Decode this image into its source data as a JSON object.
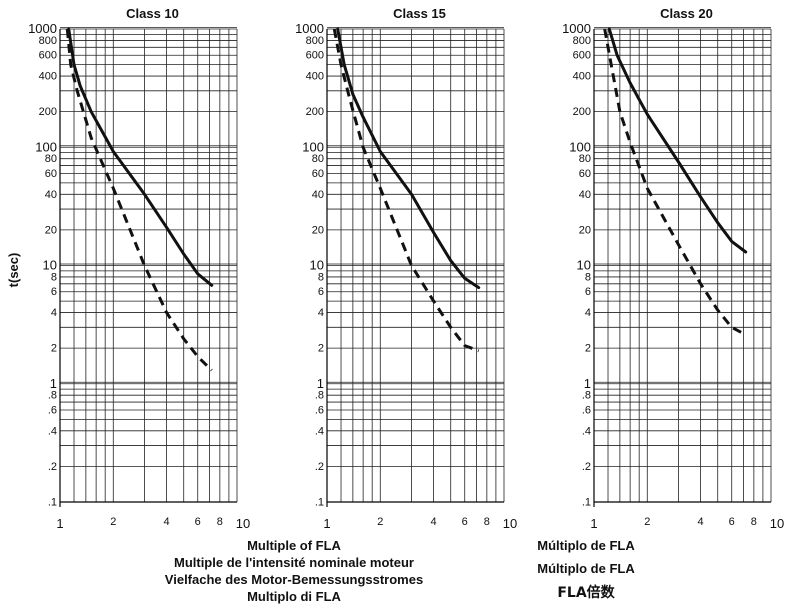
{
  "chart_data": [
    {
      "type": "line",
      "title": "Class 10",
      "x_scale": "log",
      "y_scale": "log",
      "xlim": [
        1,
        10
      ],
      "ylim": [
        0.1,
        1000
      ],
      "grid": true,
      "series": [
        {
          "style": "solid",
          "points": [
            [
              1.12,
              1000
            ],
            [
              1.2,
              500
            ],
            [
              1.3,
              330
            ],
            [
              1.5,
              200
            ],
            [
              2,
              92
            ],
            [
              3,
              40
            ],
            [
              4,
              21
            ],
            [
              5,
              12.5
            ],
            [
              6,
              8.5
            ],
            [
              7.2,
              6.8
            ]
          ]
        },
        {
          "style": "dashed",
          "points": [
            [
              1.1,
              1000
            ],
            [
              1.15,
              500
            ],
            [
              1.25,
              300
            ],
            [
              1.5,
              120
            ],
            [
              2,
              45
            ],
            [
              3,
              10
            ],
            [
              4,
              4
            ],
            [
              5,
              2.4
            ],
            [
              6,
              1.7
            ],
            [
              7.2,
              1.3
            ]
          ]
        }
      ]
    },
    {
      "type": "line",
      "title": "Class 15",
      "x_scale": "log",
      "y_scale": "log",
      "xlim": [
        1,
        10
      ],
      "ylim": [
        0.1,
        1000
      ],
      "grid": true,
      "series": [
        {
          "style": "solid",
          "points": [
            [
              1.15,
              1000
            ],
            [
              1.25,
              500
            ],
            [
              1.4,
              280
            ],
            [
              1.6,
              180
            ],
            [
              2,
              92
            ],
            [
              3,
              40
            ],
            [
              4,
              19
            ],
            [
              5,
              11
            ],
            [
              6,
              7.8
            ],
            [
              7.2,
              6.5
            ]
          ]
        },
        {
          "style": "dashed",
          "points": [
            [
              1.1,
              1000
            ],
            [
              1.2,
              500
            ],
            [
              1.35,
              250
            ],
            [
              1.6,
              100
            ],
            [
              2,
              45
            ],
            [
              3,
              10
            ],
            [
              4,
              5
            ],
            [
              5,
              3
            ],
            [
              6,
              2.1
            ],
            [
              7.2,
              1.9
            ]
          ]
        }
      ]
    },
    {
      "type": "line",
      "title": "Class 20",
      "x_scale": "log",
      "y_scale": "log",
      "xlim": [
        1,
        10
      ],
      "ylim": [
        0.1,
        1000
      ],
      "grid": true,
      "series": [
        {
          "style": "solid",
          "points": [
            [
              1.22,
              1000
            ],
            [
              1.35,
              600
            ],
            [
              1.6,
              350
            ],
            [
              2,
              190
            ],
            [
              3,
              75
            ],
            [
              4,
              38
            ],
            [
              5,
              23
            ],
            [
              6,
              16
            ],
            [
              7.2,
              13
            ]
          ]
        },
        {
          "style": "dashed",
          "points": [
            [
              1.15,
              1000
            ],
            [
              1.25,
              500
            ],
            [
              1.4,
              200
            ],
            [
              1.6,
              110
            ],
            [
              2,
              45
            ],
            [
              3,
              15
            ],
            [
              4,
              7
            ],
            [
              5,
              4.2
            ],
            [
              6,
              3
            ],
            [
              7.2,
              2.6
            ]
          ]
        }
      ]
    }
  ],
  "axes": {
    "ylabel": "t(sec)",
    "y_ticks": [
      {
        "v": 1000,
        "label": "1000"
      },
      {
        "v": 800,
        "label": "800"
      },
      {
        "v": 600,
        "label": "600"
      },
      {
        "v": 400,
        "label": "400"
      },
      {
        "v": 200,
        "label": "200"
      },
      {
        "v": 100,
        "label": "100"
      },
      {
        "v": 80,
        "label": "80"
      },
      {
        "v": 60,
        "label": "60"
      },
      {
        "v": 40,
        "label": "40"
      },
      {
        "v": 20,
        "label": "20"
      },
      {
        "v": 10,
        "label": "10"
      },
      {
        "v": 8,
        "label": "8"
      },
      {
        "v": 6,
        "label": "6"
      },
      {
        "v": 4,
        "label": "4"
      },
      {
        "v": 2,
        "label": "2"
      },
      {
        "v": 1,
        "label": "1"
      },
      {
        "v": 0.8,
        "label": ".8"
      },
      {
        "v": 0.6,
        "label": ".6"
      },
      {
        "v": 0.4,
        "label": ".4"
      },
      {
        "v": 0.2,
        "label": ".2"
      },
      {
        "v": 0.1,
        "label": ".1"
      }
    ],
    "x_ticks": [
      {
        "v": 1,
        "label": "1"
      },
      {
        "v": 2,
        "label": "2"
      },
      {
        "v": 4,
        "label": "4"
      },
      {
        "v": 6,
        "label": "6"
      },
      {
        "v": 8,
        "label": "8"
      },
      {
        "v": 10,
        "label": "10"
      }
    ]
  },
  "xlabel_lines_left": [
    "Multiple of FLA",
    "Multiple de l'intensité nominale moteur",
    "Vielfache des Motor-Bemessungsstromes",
    "Multiplo di FLA"
  ],
  "xlabel_lines_right": [
    "Múltiplo de FLA",
    "Múltiplo de FLA",
    "FLA倍数"
  ]
}
